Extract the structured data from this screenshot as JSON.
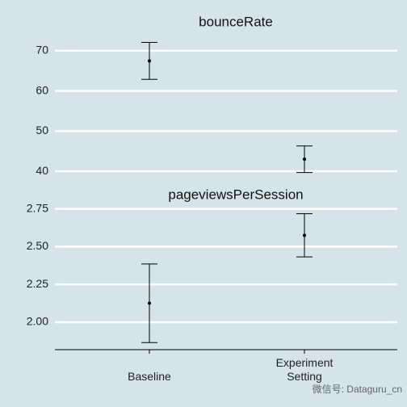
{
  "chart_data": [
    {
      "type": "errorbar",
      "title": "bounceRate",
      "values": [
        67.5,
        43.0
      ],
      "errors": [
        4.6,
        3.3
      ],
      "ylim": [
        36,
        73.6
      ],
      "yticks": [
        40,
        50,
        60,
        70
      ],
      "grid": true,
      "color": "#000000"
    },
    {
      "type": "errorbar",
      "title": "pageviewsPerSession",
      "categories": [
        "Baseline",
        "Experiment Setting"
      ],
      "values": [
        2.125,
        2.575
      ],
      "errors": [
        0.26,
        0.143
      ],
      "ylim": [
        1.818,
        2.78
      ],
      "yticks": [
        {
          "value": 2,
          "label": "2.00"
        },
        2.25,
        {
          "value": 2.5,
          "label": "2.50"
        },
        2.75
      ],
      "grid": true,
      "color": "#000000"
    }
  ],
  "watermark": "微信号: Dataguru_cn"
}
